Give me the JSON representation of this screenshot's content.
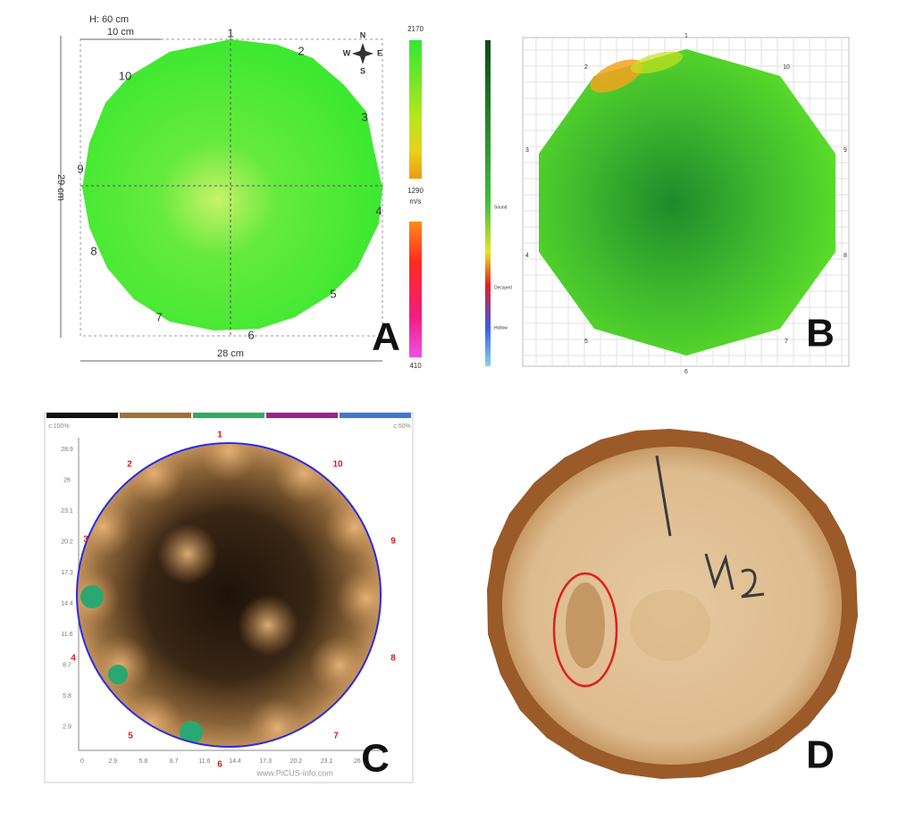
{
  "panel_a": {
    "letter": "A",
    "height": "H: 60 cm",
    "scale": "10 cm",
    "width": "28 cm",
    "depth": "29 cm",
    "points": [
      "1",
      "2",
      "3",
      "4",
      "5",
      "6",
      "7",
      "8",
      "9",
      "10"
    ],
    "compass": [
      "N",
      "W",
      "E",
      "S"
    ],
    "colorbar": {
      "max": "2170",
      "mid": "1290",
      "unit": "m/s",
      "min": "410"
    }
  },
  "panel_b": {
    "letter": "B",
    "points": [
      "1",
      "2",
      "3",
      "4",
      "5",
      "6",
      "7",
      "8",
      "9",
      "10"
    ],
    "legend": [
      "Sound",
      "Decayed",
      "Hollow"
    ]
  },
  "panel_c": {
    "letter": "C",
    "points": [
      "1",
      "2",
      "3",
      "4",
      "5",
      "6",
      "7",
      "8",
      "9",
      "10"
    ],
    "corner_left": "c:100%",
    "corner_right": "c:50%",
    "y_ticks": [
      "28.9",
      "26",
      "23.1",
      "20.2",
      "17.3",
      "14.4",
      "11.6",
      "8.7",
      "5.8",
      "2.9"
    ],
    "x_ticks": [
      "0",
      "2.9",
      "5.8",
      "8.7",
      "11.6",
      "14.4",
      "17.3",
      "20.2",
      "23.1",
      "26"
    ],
    "watermark": "www.PiCUS-info.com"
  },
  "panel_d": {
    "letter": "D"
  }
}
